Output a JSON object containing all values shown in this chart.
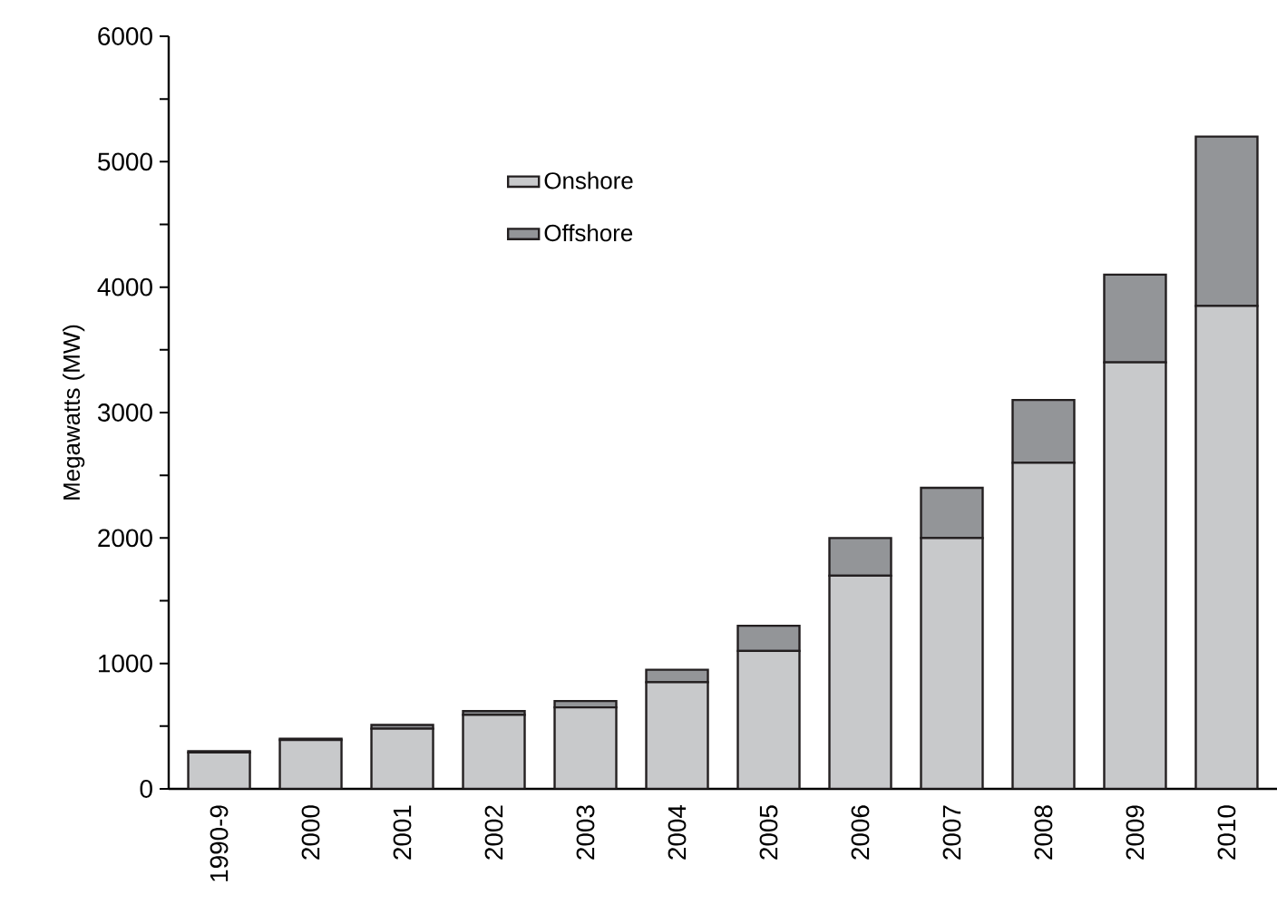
{
  "chart_data": {
    "type": "bar",
    "stacked": true,
    "ylabel": "Megawatts (MW)",
    "categories": [
      "1990-9",
      "2000",
      "2001",
      "2002",
      "2003",
      "2004",
      "2005",
      "2006",
      "2007",
      "2008",
      "2009",
      "2010"
    ],
    "series": [
      {
        "name": "Onshore",
        "color": "#c8c9cb",
        "values": [
          290,
          390,
          480,
          590,
          650,
          850,
          1100,
          1700,
          2000,
          2600,
          3400,
          3850
        ]
      },
      {
        "name": "Offshore",
        "color": "#939598",
        "values": [
          10,
          10,
          30,
          30,
          50,
          100,
          200,
          300,
          400,
          500,
          700,
          1350
        ]
      }
    ],
    "ylim": [
      0,
      6000
    ],
    "yticks": [
      0,
      {
        "value": 500,
        "label": null
      },
      1000,
      {
        "value": 1500,
        "label": null
      },
      2000,
      {
        "value": 2500,
        "label": null
      },
      3000,
      {
        "value": 3500,
        "label": null
      },
      4000,
      {
        "value": 4500,
        "label": null
      },
      5000,
      {
        "value": 5500,
        "label": null
      },
      6000
    ],
    "legend": "top left",
    "grid": false
  }
}
